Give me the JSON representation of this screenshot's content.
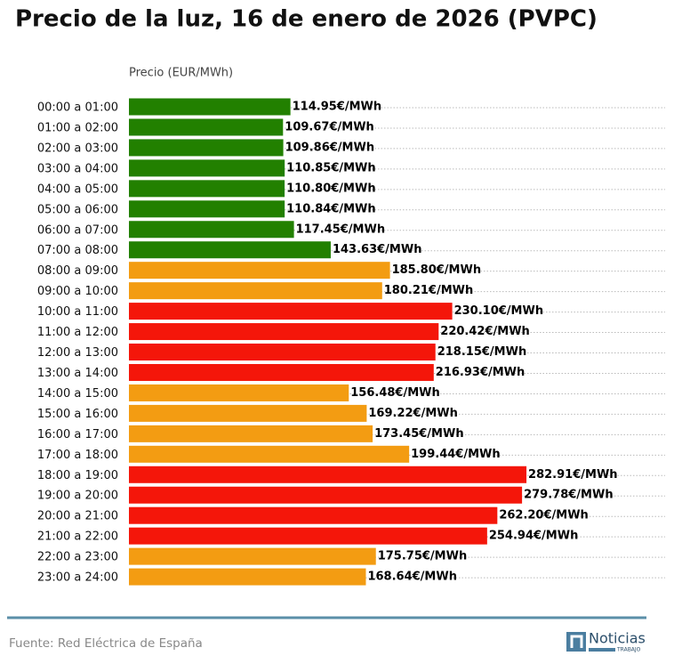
{
  "chart_data": {
    "type": "bar",
    "orientation": "horizontal",
    "title": "Precio de la luz, 16 de enero de 2026 (PVPC)",
    "x_label": "Precio (EUR/MWh)",
    "categories": [
      "00:00 a 01:00",
      "01:00 a 02:00",
      "02:00 a 03:00",
      "03:00 a 04:00",
      "04:00 a 05:00",
      "05:00 a 06:00",
      "06:00 a 07:00",
      "07:00 a 08:00",
      "08:00 a 09:00",
      "09:00 a 10:00",
      "10:00 a 11:00",
      "11:00 a 12:00",
      "12:00 a 13:00",
      "13:00 a 14:00",
      "14:00 a 15:00",
      "15:00 a 16:00",
      "16:00 a 17:00",
      "17:00 a 18:00",
      "18:00 a 19:00",
      "19:00 a 20:00",
      "20:00 a 21:00",
      "21:00 a 22:00",
      "22:00 a 23:00",
      "23:00 a 24:00"
    ],
    "values": [
      114.95,
      109.67,
      109.86,
      110.85,
      110.8,
      110.84,
      117.45,
      143.63,
      185.8,
      180.21,
      230.1,
      220.42,
      218.15,
      216.93,
      156.48,
      169.22,
      173.45,
      199.44,
      282.91,
      279.78,
      262.2,
      254.94,
      175.75,
      168.64
    ],
    "value_labels": [
      "114.95€/MWh",
      "109.67€/MWh",
      "109.86€/MWh",
      "110.85€/MWh",
      "110.80€/MWh",
      "110.84€/MWh",
      "117.45€/MWh",
      "143.63€/MWh",
      "185.80€/MWh",
      "180.21€/MWh",
      "230.10€/MWh",
      "220.42€/MWh",
      "218.15€/MWh",
      "216.93€/MWh",
      "156.48€/MWh",
      "169.22€/MWh",
      "173.45€/MWh",
      "199.44€/MWh",
      "282.91€/MWh",
      "279.78€/MWh",
      "262.20€/MWh",
      "254.94€/MWh",
      "175.75€/MWh",
      "168.64€/MWh"
    ],
    "colors": [
      "#228000",
      "#228000",
      "#228000",
      "#228000",
      "#228000",
      "#228000",
      "#228000",
      "#228000",
      "#f39c12",
      "#f39c12",
      "#f4160a",
      "#f4160a",
      "#f4160a",
      "#f4160a",
      "#f39c12",
      "#f39c12",
      "#f39c12",
      "#f39c12",
      "#f4160a",
      "#f4160a",
      "#f4160a",
      "#f4160a",
      "#f39c12",
      "#f39c12"
    ],
    "xlim": [
      0,
      381.6
    ]
  },
  "footer": {
    "source": "Fuente: Red Eléctrica de España",
    "logo": "Noticias",
    "logo_sub": "TRABAJO"
  }
}
